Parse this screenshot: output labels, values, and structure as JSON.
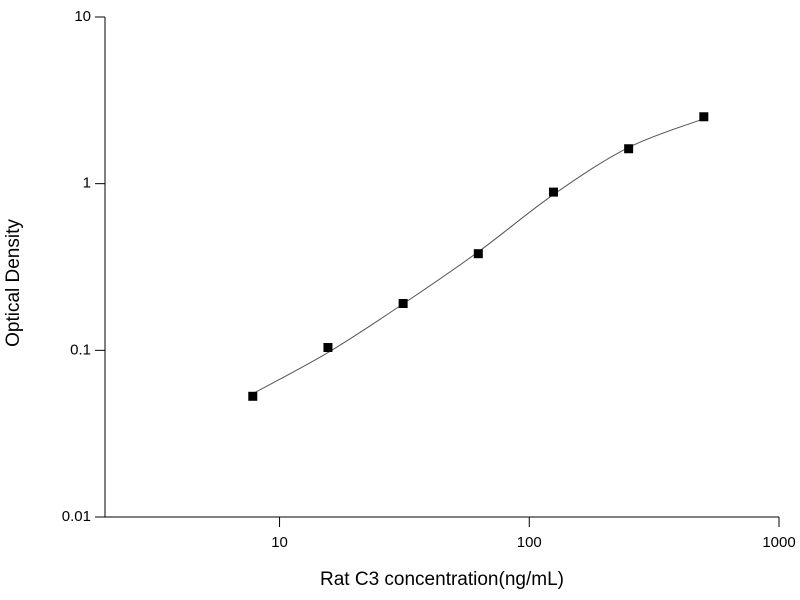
{
  "chart_data": {
    "type": "scatter",
    "x_label": "Rat C3 concentration(ng/mL)",
    "y_label": "Optical Density",
    "x": [
      7.8125,
      15.625,
      31.25,
      62.5,
      125,
      250,
      500
    ],
    "values": [
      0.053,
      0.104,
      0.191,
      0.38,
      0.89,
      1.62,
      2.52
    ],
    "color": "#000000",
    "curve": {
      "x": [
        7.8125,
        15.625,
        31.25,
        62.5,
        125,
        250,
        500
      ],
      "values": [
        0.055,
        0.097,
        0.19,
        0.39,
        0.86,
        1.65,
        2.45
      ],
      "color": "#555555"
    },
    "xlim": [
      2,
      1000
    ],
    "xticks": [
      10,
      100,
      1000
    ],
    "xscale": "log",
    "ylim": [
      0.01,
      10
    ],
    "yticks": [
      0.01,
      0.1,
      1,
      10
    ],
    "yscale": "log",
    "grid": false
  }
}
